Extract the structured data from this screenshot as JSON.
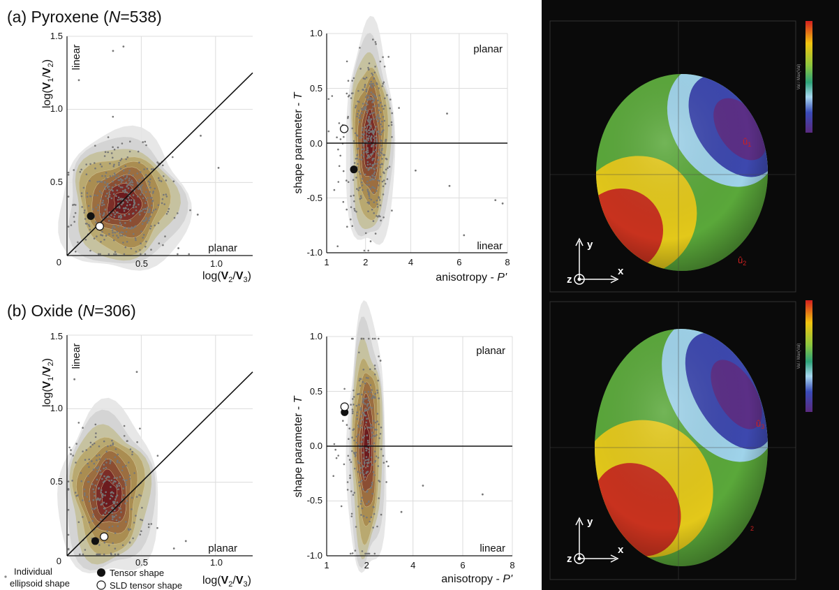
{
  "panels": [
    {
      "id": "a",
      "label_prefix": "(a) Pyroxene (",
      "label_n": "N",
      "label_suffix": "=538)",
      "flinn": {
        "x_ticks": [
          "0",
          "0.5",
          "1.0"
        ],
        "y_ticks": [
          "0.5",
          "1.0",
          "1.5"
        ],
        "x_label": [
          "log(",
          "V",
          "2",
          "/",
          "V",
          "3",
          ")"
        ],
        "y_label": [
          "log(",
          "V",
          "1",
          "/",
          "V",
          "2",
          ")"
        ],
        "region_top": "linear",
        "region_bottom": "planar"
      },
      "jelinek": {
        "x_ticks": [
          "1",
          "2",
          "4",
          "6",
          "8"
        ],
        "y_ticks": [
          "1.0",
          "0.5",
          "0.0",
          "-0.5",
          "-1.0"
        ],
        "x_label": "anisotropy - ",
        "x_label_var": "P'",
        "y_label": "shape parameter - ",
        "y_label_var": "T",
        "region_top": "planar",
        "region_bottom": "linear"
      },
      "stereo": {
        "colorbar_label": "Val / Max(Val)",
        "vector_a": "û",
        "vector_a_sub": "1",
        "vector_b": "û",
        "vector_b_sub": "2"
      }
    },
    {
      "id": "b",
      "label_prefix": "(b) Oxide (",
      "label_n": "N",
      "label_suffix": "=306)",
      "flinn": {
        "x_ticks": [
          "0",
          "0.5",
          "1.0"
        ],
        "y_ticks": [
          "0.5",
          "1.0",
          "1.5"
        ],
        "x_label": [
          "log(",
          "V",
          "2",
          "/",
          "V",
          "3",
          ")"
        ],
        "y_label": [
          "log(",
          "V",
          "1",
          "/",
          "V",
          "2",
          ")"
        ],
        "region_top": "linear",
        "region_bottom": "planar"
      },
      "jelinek": {
        "x_ticks": [
          "1",
          "2",
          "4",
          "6",
          "8"
        ],
        "y_ticks": [
          "1.0",
          "0.5",
          "0.0",
          "-0.5",
          "-1.0"
        ],
        "x_label": "anisotropy - ",
        "x_label_var": "P'",
        "y_label": "shape parameter - ",
        "y_label_var": "T",
        "region_top": "planar",
        "region_bottom": "linear"
      },
      "stereo": {
        "colorbar_label": "Val / Max(Val)",
        "vector_a": "û",
        "vector_a_sub": "3",
        "vector_b": "",
        "vector_b_sub": "2"
      }
    }
  ],
  "legend": {
    "individual_line1": "Individual",
    "individual_line2": "ellipsoid shape",
    "tensor": "Tensor shape",
    "sld": "SLD tensor shape"
  },
  "axes_icon": {
    "x": "x",
    "y": "y",
    "z": "z"
  },
  "chart_data": [
    {
      "panel": "a-flinn",
      "type": "scatter",
      "xlim": [
        0,
        1.25
      ],
      "ylim": [
        0,
        1.5
      ],
      "density_center": [
        0.38,
        0.36
      ],
      "density_spread": [
        0.18,
        0.2
      ],
      "reference_line": [
        [
          0,
          0
        ],
        [
          1.25,
          1.25
        ]
      ],
      "tensor_shape": [
        0.16,
        0.27
      ],
      "sld_tensor_shape": [
        0.22,
        0.2
      ],
      "outliers": [
        [
          0.38,
          1.43
        ],
        [
          0.31,
          1.4
        ],
        [
          0.08,
          1.2
        ],
        [
          0.9,
          0.82
        ],
        [
          0.88,
          0.28
        ],
        [
          1.02,
          0.6
        ],
        [
          0.75,
          0.05
        ]
      ]
    },
    {
      "panel": "a-jelinek",
      "type": "scatter",
      "xlim": [
        1,
        8
      ],
      "ylim": [
        -1,
        1
      ],
      "reference_line": [
        [
          1,
          0
        ],
        [
          8,
          0
        ]
      ],
      "density_center": [
        2.2,
        0.02
      ],
      "density_spread": [
        0.45,
        0.42
      ],
      "tensor_shape": [
        1.7,
        -0.24
      ],
      "sld_tensor_shape": [
        1.45,
        0.13
      ],
      "outliers": [
        [
          5.5,
          0.27
        ],
        [
          5.6,
          -0.39
        ],
        [
          7.5,
          -0.52
        ],
        [
          7.8,
          -0.55
        ],
        [
          6.2,
          -0.84
        ],
        [
          4.2,
          -0.25
        ]
      ]
    },
    {
      "panel": "b-flinn",
      "type": "scatter",
      "xlim": [
        0,
        1.25
      ],
      "ylim": [
        0,
        1.5
      ],
      "reference_line": [
        [
          0,
          0
        ],
        [
          1.25,
          1.25
        ]
      ],
      "density_center": [
        0.28,
        0.42
      ],
      "density_spread": [
        0.14,
        0.24
      ],
      "tensor_shape": [
        0.19,
        0.1
      ],
      "sld_tensor_shape": [
        0.25,
        0.13
      ],
      "outliers": [
        [
          0.47,
          1.25
        ],
        [
          0.05,
          1.2
        ],
        [
          0.8,
          0.1
        ],
        [
          0.72,
          0.05
        ]
      ]
    },
    {
      "panel": "b-jelinek",
      "type": "scatter",
      "xlim": [
        1,
        8
      ],
      "ylim": [
        -1,
        1
      ],
      "reference_line": [
        [
          1,
          0
        ],
        [
          8,
          0
        ]
      ],
      "density_center": [
        2.0,
        0.0
      ],
      "density_spread": [
        0.35,
        0.5
      ],
      "tensor_shape": [
        1.45,
        0.31
      ],
      "sld_tensor_shape": [
        1.45,
        0.36
      ],
      "outliers": [
        [
          4.4,
          -0.36
        ],
        [
          6.8,
          -0.44
        ],
        [
          2.6,
          0.78
        ],
        [
          3.5,
          -0.6
        ]
      ]
    }
  ]
}
